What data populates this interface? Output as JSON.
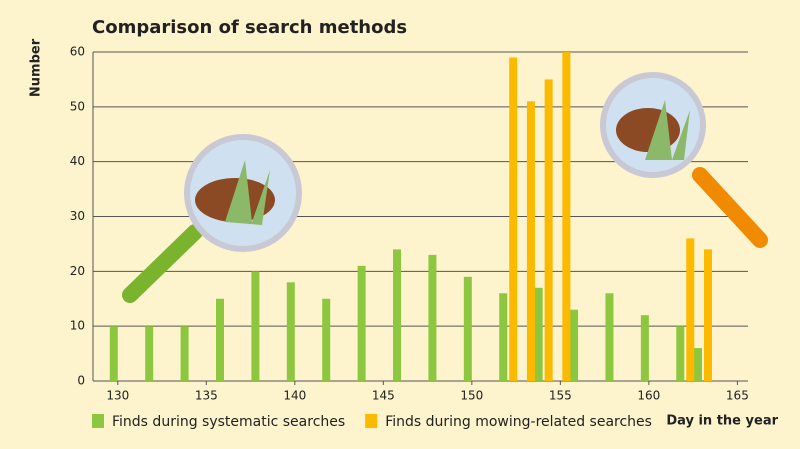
{
  "chart_data": {
    "type": "bar",
    "title": "Comparison of search methods",
    "y_label": "Number",
    "x_label": "Day in the year",
    "xlim": [
      128.6,
      165.6
    ],
    "xticks": [
      130,
      135,
      140,
      145,
      150,
      155,
      160,
      165
    ],
    "ylim": [
      0,
      60
    ],
    "yticks": [
      0,
      10,
      20,
      30,
      40,
      50,
      60
    ],
    "grid": true,
    "series": [
      {
        "name": "Finds during systematic searches",
        "color": "#8dc63f",
        "x": [
          130,
          132,
          134,
          136,
          138,
          140,
          142,
          144,
          146,
          148,
          150,
          152,
          154,
          156,
          158,
          160,
          162,
          163
        ],
        "values": [
          10,
          10,
          10,
          15,
          20,
          18,
          15,
          21,
          24,
          23,
          19,
          16,
          17,
          13,
          16,
          12,
          10,
          6
        ]
      },
      {
        "name": "Finds during mowing-related searches",
        "color": "#fbb900",
        "x": [
          152,
          153,
          154,
          155,
          162,
          163
        ],
        "values": [
          59,
          51,
          55,
          60,
          26,
          24
        ]
      }
    ]
  }
}
